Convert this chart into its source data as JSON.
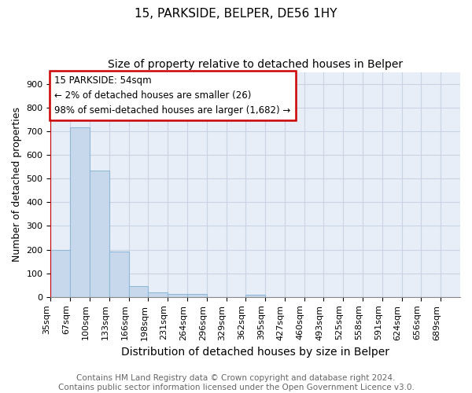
{
  "title": "15, PARKSIDE, BELPER, DE56 1HY",
  "subtitle": "Size of property relative to detached houses in Belper",
  "xlabel": "Distribution of detached houses by size in Belper",
  "ylabel": "Number of detached properties",
  "categories": [
    "35sqm",
    "67sqm",
    "100sqm",
    "133sqm",
    "166sqm",
    "198sqm",
    "231sqm",
    "264sqm",
    "296sqm",
    "329sqm",
    "362sqm",
    "395sqm",
    "427sqm",
    "460sqm",
    "493sqm",
    "525sqm",
    "558sqm",
    "591sqm",
    "624sqm",
    "656sqm",
    "689sqm"
  ],
  "values": [
    200,
    715,
    535,
    192,
    45,
    20,
    14,
    12,
    0,
    0,
    8,
    0,
    0,
    0,
    0,
    0,
    0,
    0,
    0,
    0,
    0
  ],
  "bar_color": "#c8d8ec",
  "bar_edgecolor": "#90b8d8",
  "bar_linewidth": 0.8,
  "grid_color": "#c8d4e4",
  "background_color": "#e8eef8",
  "ylim": [
    0,
    950
  ],
  "yticks": [
    0,
    100,
    200,
    300,
    400,
    500,
    600,
    700,
    800,
    900
  ],
  "annotation_text": "15 PARKSIDE: 54sqm\n← 2% of detached houses are smaller (26)\n98% of semi-detached houses are larger (1,682) →",
  "annotation_box_edgecolor": "#cc0000",
  "annotation_box_facecolor": "white",
  "vline_color": "#cc0000",
  "vline_linewidth": 1.5,
  "title_fontsize": 11,
  "subtitle_fontsize": 10,
  "xlabel_fontsize": 10,
  "ylabel_fontsize": 9,
  "tick_fontsize": 8,
  "annotation_fontsize": 8.5,
  "footer_text": "Contains HM Land Registry data © Crown copyright and database right 2024.\nContains public sector information licensed under the Open Government Licence v3.0.",
  "footer_fontsize": 7.5
}
